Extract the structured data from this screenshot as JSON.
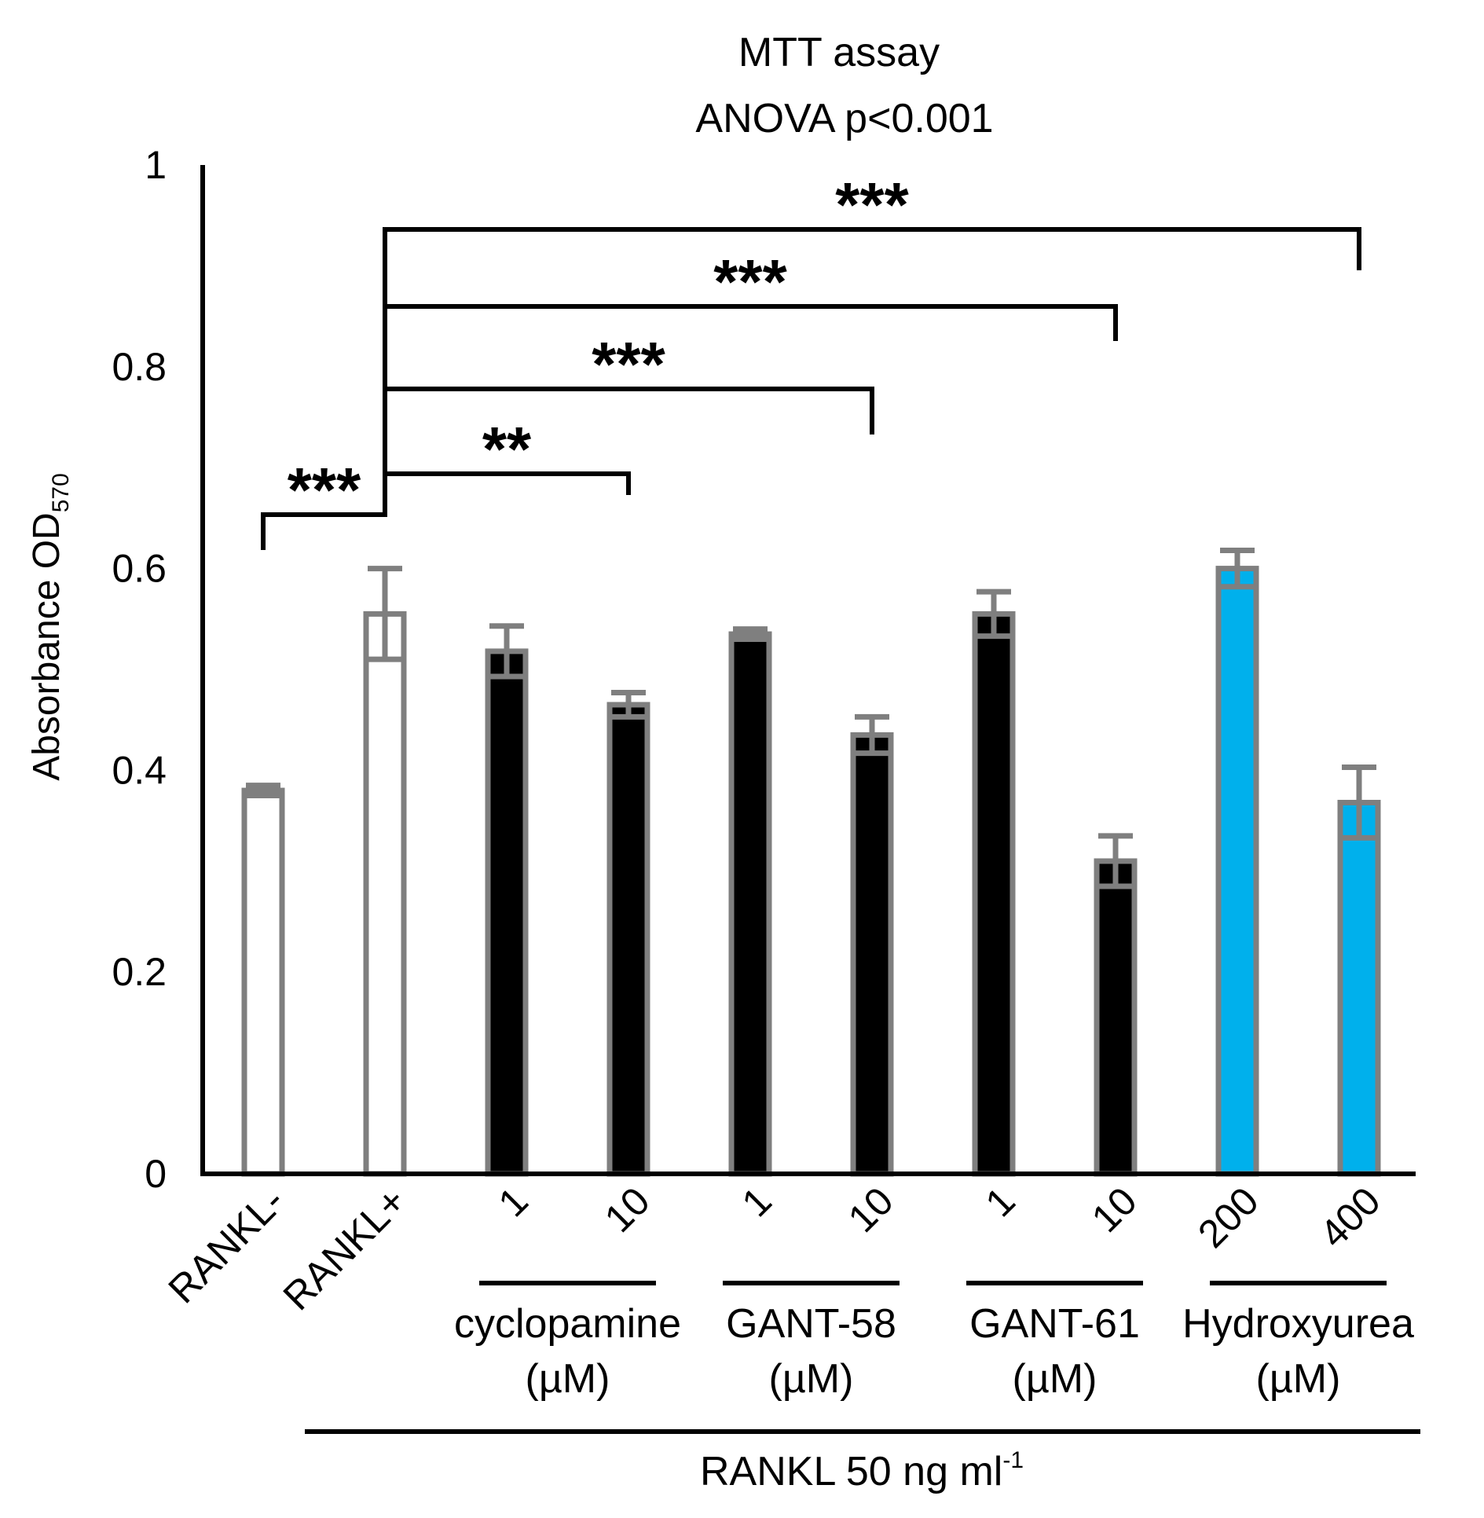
{
  "chart_data": {
    "type": "bar",
    "title": "MTT assay",
    "subtitle": "ANOVA p<0.001",
    "ylabel_main": "Absorbance OD",
    "ylabel_sub": "570",
    "ylim": [
      0,
      1
    ],
    "yticks": [
      "0",
      "0.2",
      "0.4",
      "0.6",
      "0.8",
      "1"
    ],
    "categories": [
      "RANKL-",
      "RANKL+",
      "1",
      "10",
      "1",
      "10",
      "1",
      "10",
      "200",
      "400"
    ],
    "values": [
      0.38,
      0.555,
      0.518,
      0.465,
      0.535,
      0.435,
      0.555,
      0.31,
      0.6,
      0.368
    ],
    "errors": [
      0.005,
      0.045,
      0.025,
      0.012,
      0.005,
      0.018,
      0.022,
      0.025,
      0.018,
      0.035
    ],
    "groups": [
      {
        "name": "cyclopamine",
        "unit": "(µM)",
        "members": [
          2,
          3
        ]
      },
      {
        "name": "GANT-58",
        "unit": "(µM)",
        "members": [
          4,
          5
        ]
      },
      {
        "name": "GANT-61",
        "unit": "(µM)",
        "members": [
          6,
          7
        ]
      },
      {
        "name": "Hydroxyurea",
        "unit": "(µM)",
        "members": [
          8,
          9
        ]
      }
    ],
    "treatment_label": "RANKL 50 ng ml",
    "treatment_sup": "-1",
    "significance": [
      {
        "from": 0,
        "to": 1,
        "label": "***"
      },
      {
        "from": 1,
        "to": 3,
        "label": "**"
      },
      {
        "from": 1,
        "to": 5,
        "label": "***"
      },
      {
        "from": 1,
        "to": 7,
        "label": "***"
      },
      {
        "from": 1,
        "to": 9,
        "label": "***"
      }
    ],
    "bar_fill": [
      "white",
      "white",
      "black",
      "black",
      "black",
      "black",
      "black",
      "black",
      "cyan",
      "cyan"
    ]
  },
  "colors": {
    "white": "#ffffff",
    "black": "#000000",
    "cyan": "#00b0ec",
    "outline": "#7f7f7f"
  }
}
